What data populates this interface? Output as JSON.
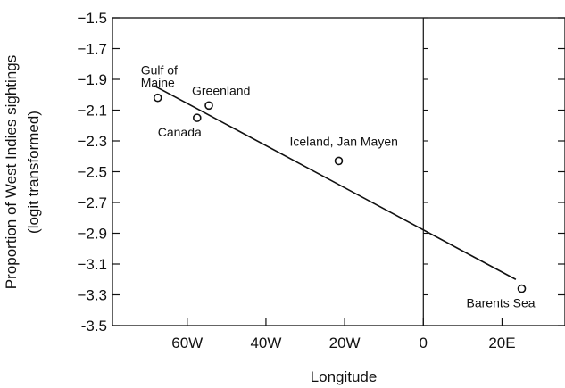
{
  "chart_data": {
    "type": "scatter",
    "xlabel": "Longitude",
    "ylabel": "Proportion of West Indies sightings",
    "ylabel_sub": "(logit transformed)",
    "xlim": [
      -79,
      36
    ],
    "ylim": [
      -3.5,
      -1.5
    ],
    "x_ticks": [
      {
        "value": -60,
        "label": "60W"
      },
      {
        "value": -40,
        "label": "40W"
      },
      {
        "value": -20,
        "label": "20W"
      },
      {
        "value": 0,
        "label": "0"
      },
      {
        "value": 20,
        "label": "20E"
      }
    ],
    "y_ticks": [
      {
        "value": -1.5,
        "label": "−1.5"
      },
      {
        "value": -1.7,
        "label": "−1.7"
      },
      {
        "value": -1.9,
        "label": "−1.9"
      },
      {
        "value": -2.1,
        "label": "−2.1"
      },
      {
        "value": -2.3,
        "label": "−2.3"
      },
      {
        "value": -2.5,
        "label": "−2.5"
      },
      {
        "value": -2.7,
        "label": "−2.7"
      },
      {
        "value": -2.9,
        "label": "−2.9"
      },
      {
        "value": -3.1,
        "label": "−3.1"
      },
      {
        "value": -3.3,
        "label": "−3.3"
      },
      {
        "value": -3.5,
        "label": "-3.5"
      }
    ],
    "points": [
      {
        "label": [
          "Gulf of",
          "Maine"
        ],
        "x": -67.5,
        "y": -2.02,
        "label_pos": "above-left"
      },
      {
        "label": [
          "Canada"
        ],
        "x": -57.5,
        "y": -2.15,
        "label_pos": "below-left"
      },
      {
        "label": [
          "Greenland"
        ],
        "x": -54.5,
        "y": -2.07,
        "label_pos": "above-right"
      },
      {
        "label": [
          "Iceland, Jan Mayen"
        ],
        "x": -21.5,
        "y": -2.43,
        "label_pos": "above"
      },
      {
        "label": [
          "Barents Sea"
        ],
        "x": 25,
        "y": -3.26,
        "label_pos": "below"
      }
    ],
    "regression_line": {
      "x": [
        -68.5,
        23.5
      ],
      "y": [
        -1.94,
        -3.2
      ]
    },
    "reference_line_x": 0,
    "grid": false
  }
}
